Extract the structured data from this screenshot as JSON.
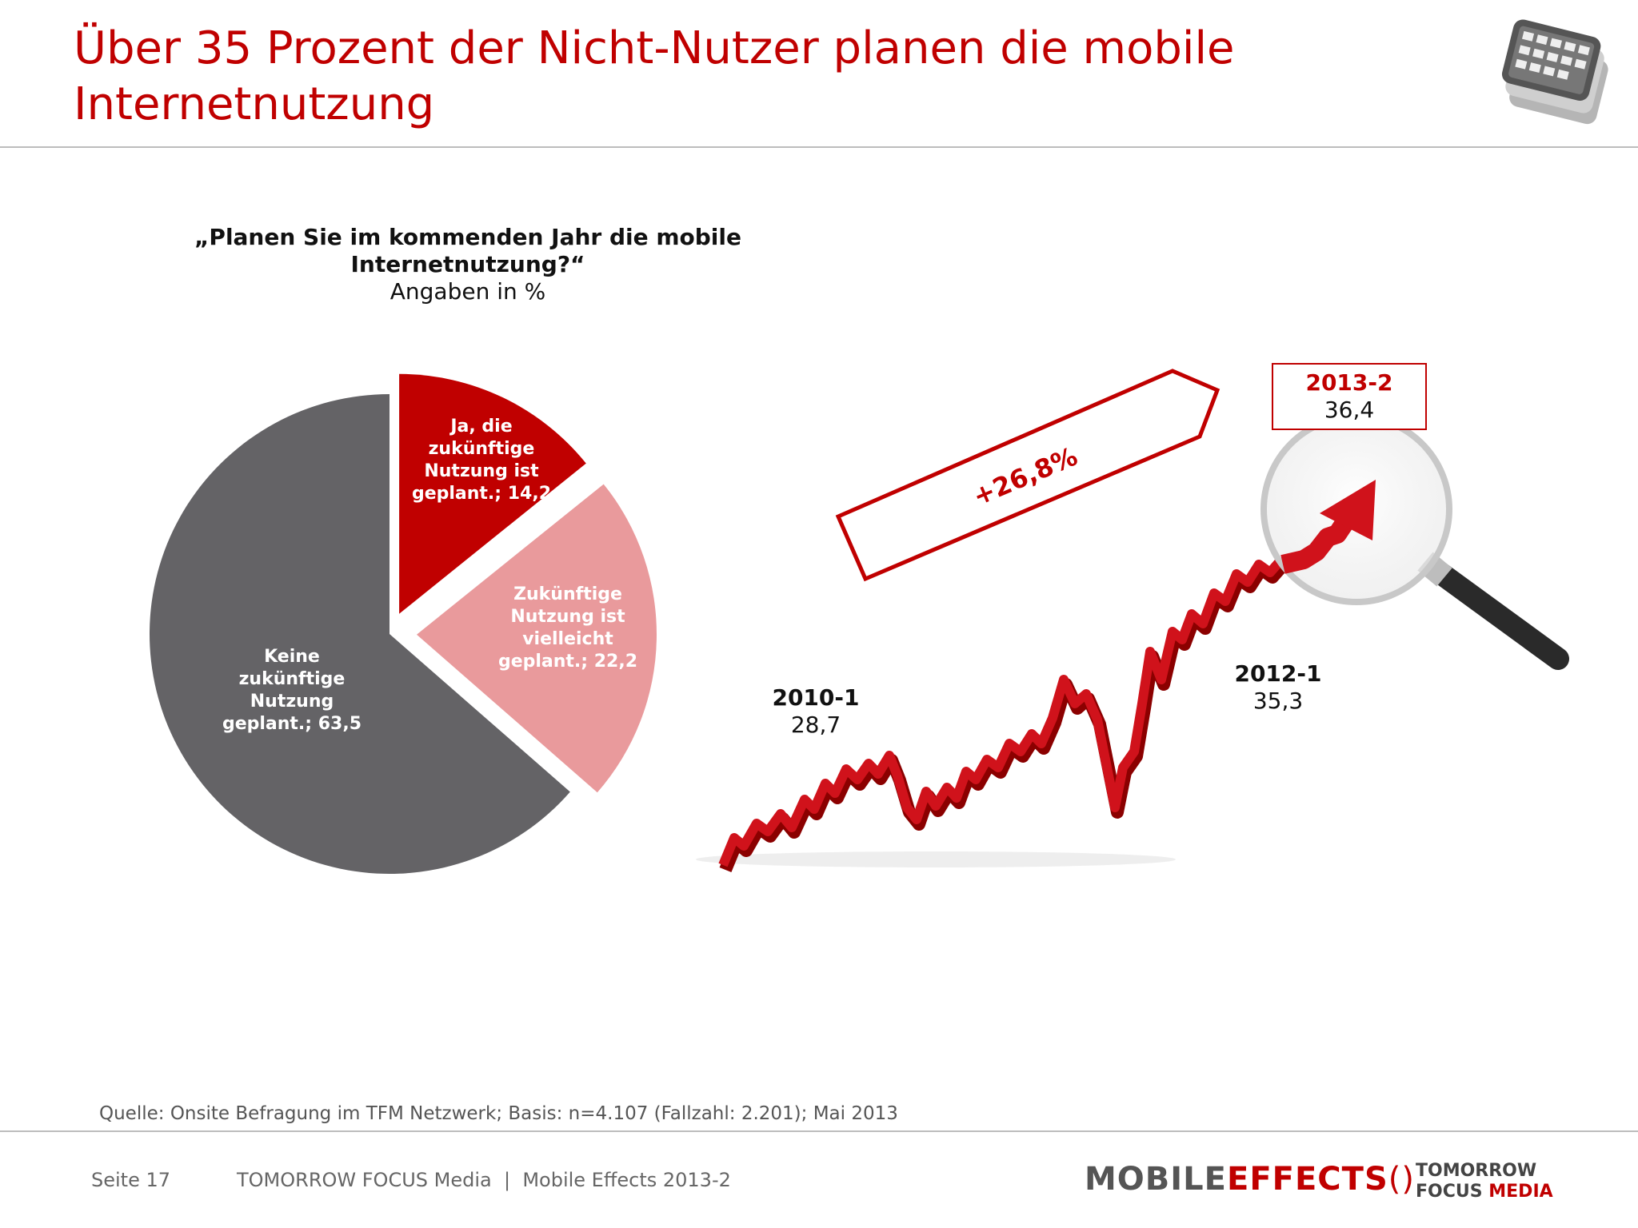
{
  "header": {
    "title_line1": "Über 35 Prozent der Nicht-Nutzer planen die mobile",
    "title_line2": "Internetnutzung"
  },
  "question": {
    "text": "„Planen Sie im kommenden Jahr die mobile Internetnutzung?“",
    "unit": "Angaben in %"
  },
  "chart_data": [
    {
      "type": "pie",
      "slices": [
        {
          "label": "Ja, die zukünftige Nutzung ist geplant.; 14,2",
          "value": 14.2,
          "color": "#c00000"
        },
        {
          "label": "Zukünftige Nutzung ist vielleicht geplant.; 22,2",
          "value": 22.2,
          "color": "#e99a9c"
        },
        {
          "label": "Keine zukünftige Nutzung geplant.; 63,5",
          "value": 63.5,
          "color": "#646366"
        }
      ]
    },
    {
      "type": "line",
      "points": [
        {
          "x": "2010-1",
          "y": 28.7
        },
        {
          "x": "2012-1",
          "y": 35.3
        },
        {
          "x": "2013-2",
          "y": 36.4
        }
      ],
      "annotation": "+26,8%"
    }
  ],
  "labels": {
    "p2010": {
      "name": "2010-1",
      "value": "28,7"
    },
    "p2012": {
      "name": "2012-1",
      "value": "35,3"
    },
    "p2013": {
      "name": "2013-2",
      "value": "36,4"
    }
  },
  "source": "Quelle: Onsite Befragung im TFM Netzwerk; Basis: n=4.107 (Fallzahl: 2.201); Mai 2013",
  "footer": {
    "page": "Seite 17",
    "company": "TOMORROW FOCUS Media  |  Mobile Effects 2013-2",
    "logo_mobile": "MOBILE",
    "logo_effects": "EFFECTS",
    "logo_tomorrow": "TOMORROW",
    "logo_focus": "FOCUS",
    "logo_media": "MEDIA"
  },
  "colors": {
    "accent": "#c00000",
    "pie_light": "#e99a9c",
    "pie_dark": "#646366"
  }
}
